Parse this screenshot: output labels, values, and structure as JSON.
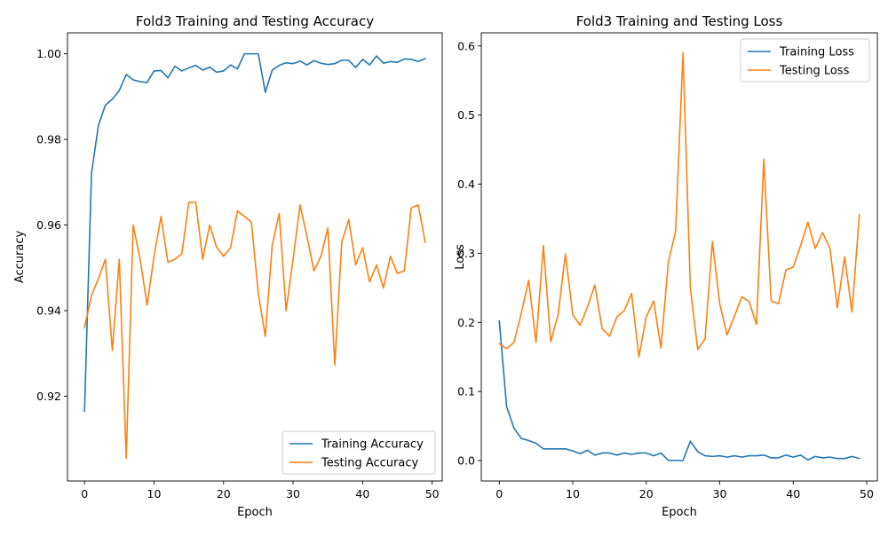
{
  "colors": {
    "train": "#1f77b4",
    "test": "#ff7f0e"
  },
  "chart_data": [
    {
      "type": "line",
      "title": "Fold3 Training and Testing Accuracy",
      "xlabel": "Epoch",
      "ylabel": "Accuracy",
      "xlim": [
        -2.45,
        51.45
      ],
      "ylim": [
        0.9002,
        1.0049
      ],
      "xticks": [
        0,
        10,
        20,
        30,
        40,
        50
      ],
      "yticks": [
        0.92,
        0.94,
        0.96,
        0.98,
        1.0
      ],
      "ytick_labels": [
        "0.92",
        "0.94",
        "0.96",
        "0.98",
        "1.00"
      ],
      "legend_position": "lower-right",
      "x": [
        0,
        1,
        2,
        3,
        4,
        5,
        6,
        7,
        8,
        9,
        10,
        11,
        12,
        13,
        14,
        15,
        16,
        17,
        18,
        19,
        20,
        21,
        22,
        23,
        24,
        25,
        26,
        27,
        28,
        29,
        30,
        31,
        32,
        33,
        34,
        35,
        36,
        37,
        38,
        39,
        40,
        41,
        42,
        43,
        44,
        45,
        46,
        47,
        48,
        49
      ],
      "series": [
        {
          "name": "Training Accuracy",
          "color": "#1f77b4",
          "values": [
            0.9165,
            0.972,
            0.9833,
            0.988,
            0.9894,
            0.9914,
            0.9952,
            0.9939,
            0.9935,
            0.9933,
            0.996,
            0.9961,
            0.9944,
            0.9971,
            0.996,
            0.9967,
            0.9973,
            0.9962,
            0.9969,
            0.9957,
            0.996,
            0.9974,
            0.9965,
            1.0,
            1.0,
            1.0,
            0.991,
            0.9962,
            0.9973,
            0.9979,
            0.9977,
            0.9983,
            0.9974,
            0.9984,
            0.9978,
            0.9975,
            0.9977,
            0.9985,
            0.9985,
            0.9968,
            0.9987,
            0.9974,
            0.9995,
            0.9978,
            0.9982,
            0.998,
            0.9988,
            0.9987,
            0.9982,
            0.9989
          ]
        },
        {
          "name": "Testing Accuracy",
          "color": "#ff7f0e",
          "values": [
            0.936,
            0.9435,
            0.9475,
            0.952,
            0.9307,
            0.952,
            0.9055,
            0.96,
            0.952,
            0.9413,
            0.9527,
            0.962,
            0.9513,
            0.952,
            0.9533,
            0.9653,
            0.9653,
            0.952,
            0.96,
            0.9548,
            0.9527,
            0.9547,
            0.9633,
            0.962,
            0.9607,
            0.944,
            0.934,
            0.9553,
            0.9627,
            0.94,
            0.952,
            0.9647,
            0.9573,
            0.9493,
            0.9527,
            0.9593,
            0.9273,
            0.956,
            0.9613,
            0.9507,
            0.9547,
            0.9467,
            0.9507,
            0.9453,
            0.9527,
            0.9487,
            0.9493,
            0.964,
            0.9647,
            0.956
          ]
        }
      ]
    },
    {
      "type": "line",
      "title": "Fold3 Training and Testing Loss",
      "xlabel": "Epoch",
      "ylabel": "Loss",
      "xlim": [
        -2.45,
        51.45
      ],
      "ylim": [
        -0.0295,
        0.619
      ],
      "xticks": [
        0,
        10,
        20,
        30,
        40,
        50
      ],
      "yticks": [
        0.0,
        0.1,
        0.2,
        0.3,
        0.4,
        0.5,
        0.6
      ],
      "ytick_labels": [
        "0.0",
        "0.1",
        "0.2",
        "0.3",
        "0.4",
        "0.5",
        "0.6"
      ],
      "legend_position": "upper-right",
      "x": [
        0,
        1,
        2,
        3,
        4,
        5,
        6,
        7,
        8,
        9,
        10,
        11,
        12,
        13,
        14,
        15,
        16,
        17,
        18,
        19,
        20,
        21,
        22,
        23,
        24,
        25,
        26,
        27,
        28,
        29,
        30,
        31,
        32,
        33,
        34,
        35,
        36,
        37,
        38,
        39,
        40,
        41,
        42,
        43,
        44,
        45,
        46,
        47,
        48,
        49
      ],
      "series": [
        {
          "name": "Training Loss",
          "color": "#1f77b4",
          "values": [
            0.202,
            0.078,
            0.047,
            0.032,
            0.029,
            0.025,
            0.017,
            0.017,
            0.017,
            0.017,
            0.014,
            0.01,
            0.015,
            0.008,
            0.011,
            0.011,
            0.008,
            0.011,
            0.009,
            0.011,
            0.011,
            0.007,
            0.011,
            0.0005,
            0.0002,
            0.0001,
            0.028,
            0.013,
            0.007,
            0.006,
            0.007,
            0.005,
            0.007,
            0.005,
            0.007,
            0.007,
            0.008,
            0.004,
            0.004,
            0.008,
            0.005,
            0.008,
            0.001,
            0.006,
            0.004,
            0.005,
            0.003,
            0.003,
            0.006,
            0.003
          ]
        },
        {
          "name": "Testing Loss",
          "color": "#ff7f0e",
          "values": [
            0.169,
            0.162,
            0.171,
            0.214,
            0.261,
            0.171,
            0.311,
            0.172,
            0.211,
            0.299,
            0.211,
            0.196,
            0.222,
            0.254,
            0.191,
            0.18,
            0.208,
            0.217,
            0.242,
            0.15,
            0.208,
            0.231,
            0.163,
            0.287,
            0.332,
            0.59,
            0.25,
            0.161,
            0.176,
            0.317,
            0.227,
            0.182,
            0.209,
            0.237,
            0.23,
            0.197,
            0.436,
            0.231,
            0.227,
            0.276,
            0.28,
            0.311,
            0.345,
            0.307,
            0.33,
            0.307,
            0.221,
            0.295,
            0.215,
            0.356
          ]
        }
      ]
    }
  ]
}
